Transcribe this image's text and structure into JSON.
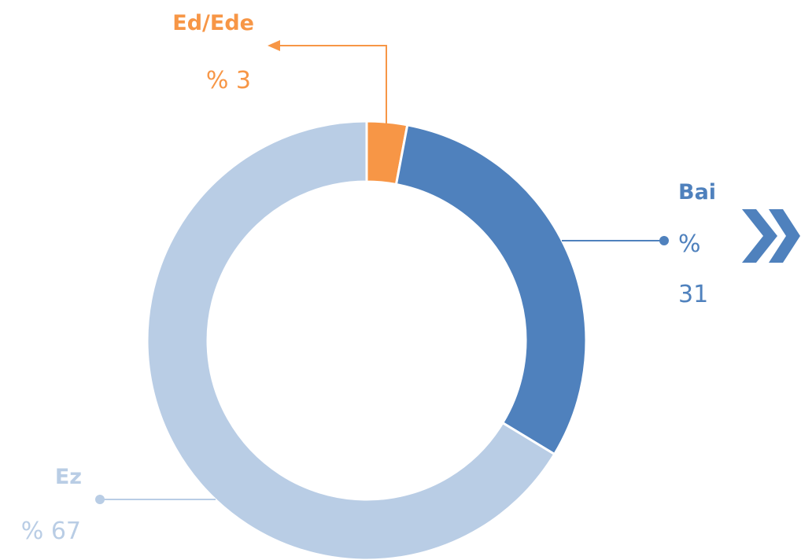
{
  "chart_data": {
    "type": "pie",
    "variant": "donut",
    "title": "",
    "slices": [
      {
        "label": "Ed/Ede",
        "value": 3,
        "value_text": "% 3",
        "color": "#f79646"
      },
      {
        "label": "Bai",
        "value": 31,
        "value_text": "% 31",
        "color": "#4f81bd"
      },
      {
        "label": "Ez",
        "value": 67,
        "value_text": "% 67",
        "color": "#b9cde5"
      }
    ],
    "legend": "none"
  },
  "decoration": {
    "next_icon": "double-chevron-right-icon",
    "next_icon_color": "#4f81bd"
  }
}
